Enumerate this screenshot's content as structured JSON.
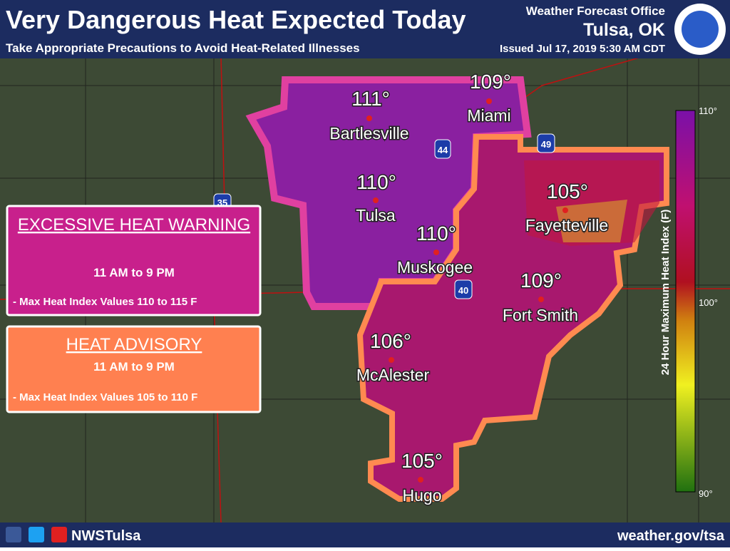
{
  "header": {
    "title": "Very Dangerous Heat Expected Today",
    "subtitle": "Take Appropriate Precautions to Avoid Heat-Related Illnesses",
    "office": "Weather Forecast Office",
    "location": "Tulsa, OK",
    "issued": "Issued Jul 17, 2019 5:30 AM CDT"
  },
  "cities": [
    {
      "temp": "111°",
      "name": "Bartlesville"
    },
    {
      "temp": "109°",
      "name": "Miami"
    },
    {
      "temp": "110°",
      "name": "Tulsa"
    },
    {
      "temp": "110°",
      "name": "Muskogee"
    },
    {
      "temp": "105°",
      "name": "Fayetteville"
    },
    {
      "temp": "109°",
      "name": "Fort Smith"
    },
    {
      "temp": "106°",
      "name": "McAlester"
    },
    {
      "temp": "105°",
      "name": "Hugo"
    }
  ],
  "interstates": [
    "44",
    "49",
    "35",
    "40"
  ],
  "warning": {
    "title": "EXCESSIVE HEAT WARNING",
    "time": "11 AM to 9 PM",
    "detail": "- Max Heat Index Values 110 to 115 F"
  },
  "advisory": {
    "title": "HEAT ADVISORY",
    "time": "11 AM to 9 PM",
    "detail": "- Max Heat Index Values 105 to 110 F"
  },
  "legend": {
    "label": "24 Hour Maximum Heat Index (F)",
    "ticks": [
      "110°",
      "100°",
      "90°"
    ]
  },
  "footer": {
    "social": "NWSTulsa",
    "url": "weather.gov/tsa"
  }
}
